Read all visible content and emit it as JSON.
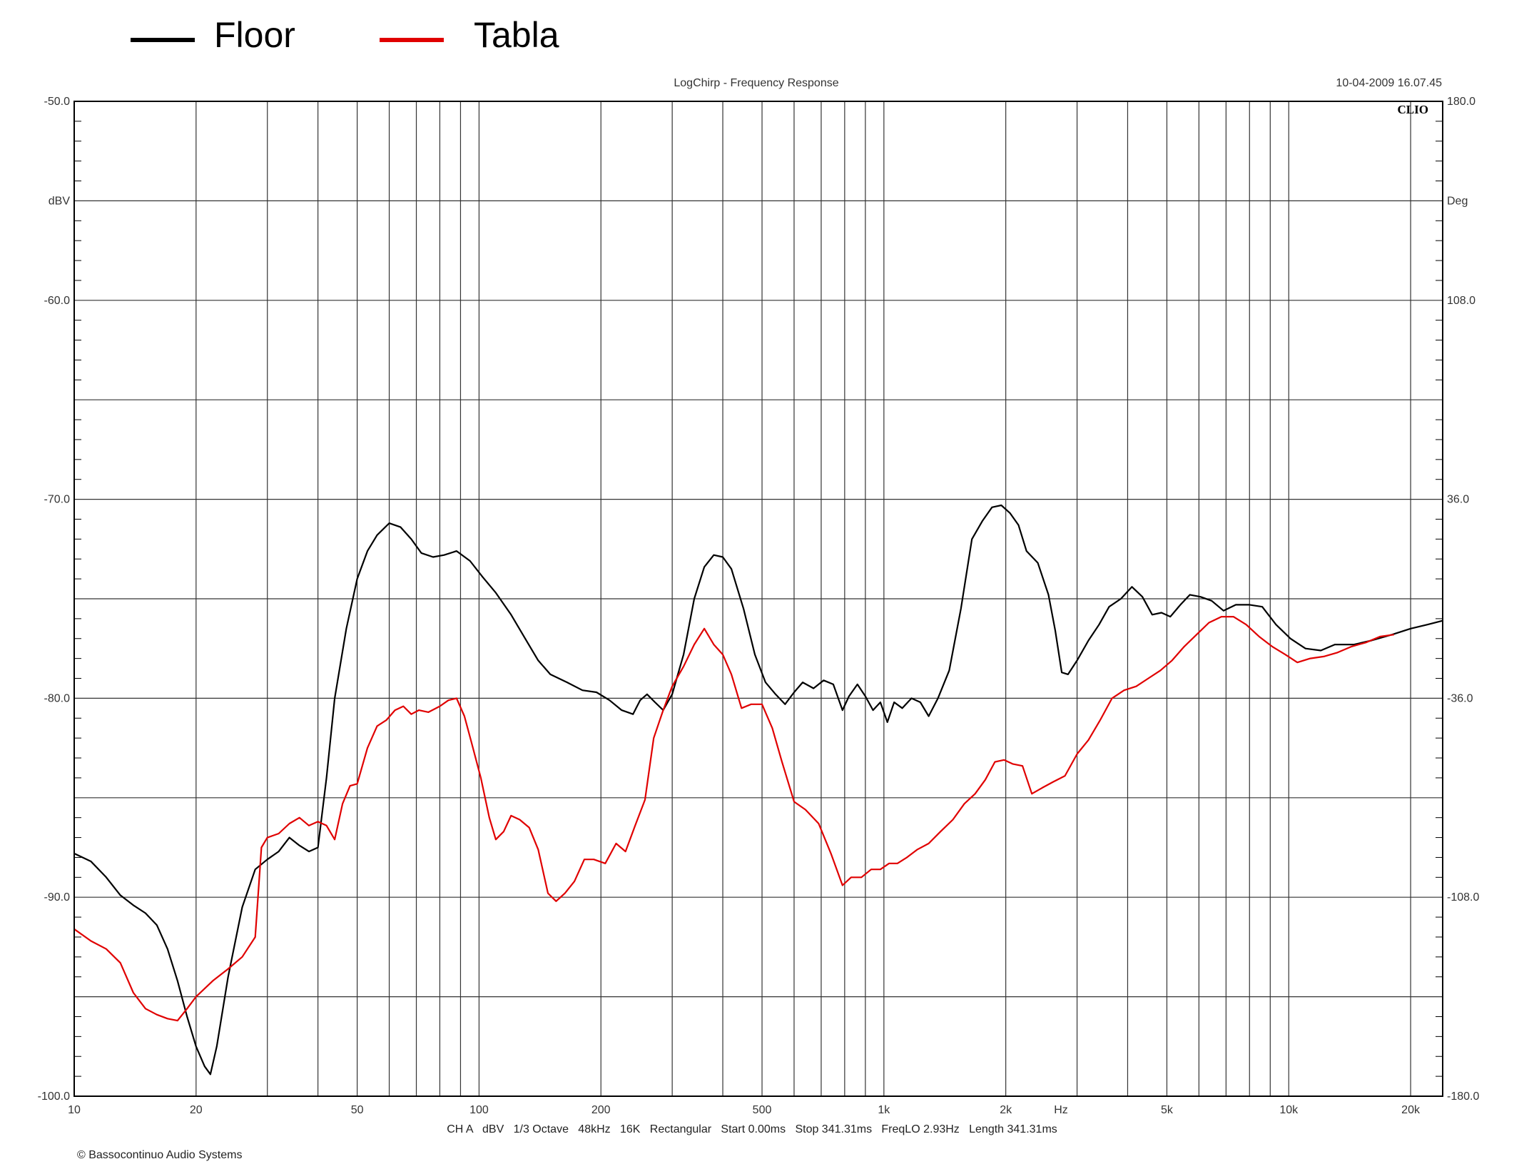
{
  "legend": [
    {
      "name": "Floor",
      "color": "#000000"
    },
    {
      "name": "Tabla",
      "color": "#e00000"
    }
  ],
  "header": {
    "title": "LogChirp - Frequency Response",
    "timestamp": "10-04-2009 16.07.45",
    "brand": "CLIO"
  },
  "footer": {
    "settings": "CH A   dBV   1/3 Octave   48kHz   16K   Rectangular   Start 0.00ms   Stop 341.31ms   FreqLO 2.93Hz   Length 341.31ms",
    "copyright": "© Bassocontinuo Audio Systems"
  },
  "chart_data": {
    "type": "line",
    "x_scale": "log",
    "xlim": [
      10,
      24000
    ],
    "ylim": [
      -100,
      -50
    ],
    "y2lim": [
      -180,
      180
    ],
    "xlabel": "Hz",
    "ylabel": "dBV",
    "y2label": "Deg",
    "grid": true,
    "x_ticks": [
      {
        "value": 10,
        "label": "10"
      },
      {
        "value": 20,
        "label": "20"
      },
      {
        "value": 50,
        "label": "50"
      },
      {
        "value": 100,
        "label": "100"
      },
      {
        "value": 200,
        "label": "200"
      },
      {
        "value": 500,
        "label": "500"
      },
      {
        "value": 1000,
        "label": "1k"
      },
      {
        "value": 2000,
        "label": "2k"
      },
      {
        "value": 5000,
        "label": "5k"
      },
      {
        "value": 10000,
        "label": "10k"
      },
      {
        "value": 20000,
        "label": "20k"
      }
    ],
    "y_ticks": [
      {
        "value": -50,
        "label": "-50.0"
      },
      {
        "value": -55,
        "label": "dBV"
      },
      {
        "value": -60,
        "label": "-60.0"
      },
      {
        "value": -70,
        "label": "-70.0"
      },
      {
        "value": -80,
        "label": "-80.0"
      },
      {
        "value": -90,
        "label": "-90.0"
      },
      {
        "value": -100,
        "label": "-100.0"
      }
    ],
    "y2_ticks": [
      {
        "value": 180,
        "label": "180.0"
      },
      {
        "value": 144,
        "label": "Deg"
      },
      {
        "value": 108,
        "label": "108.0"
      },
      {
        "value": 36,
        "label": "36.0"
      },
      {
        "value": -36,
        "label": "-36.0"
      },
      {
        "value": -108,
        "label": "-108.0"
      },
      {
        "value": -180,
        "label": "-180.0"
      }
    ],
    "series": [
      {
        "name": "Floor",
        "color": "#000000",
        "points": [
          [
            10,
            -87.8
          ],
          [
            11,
            -88.2
          ],
          [
            12,
            -89.0
          ],
          [
            13,
            -89.9
          ],
          [
            14,
            -90.4
          ],
          [
            15,
            -90.8
          ],
          [
            16,
            -91.4
          ],
          [
            17,
            -92.6
          ],
          [
            18,
            -94.2
          ],
          [
            19,
            -96.0
          ],
          [
            20,
            -97.5
          ],
          [
            21,
            -98.5
          ],
          [
            21.7,
            -98.9
          ],
          [
            22.5,
            -97.5
          ],
          [
            24,
            -94.0
          ],
          [
            26,
            -90.5
          ],
          [
            28,
            -88.6
          ],
          [
            30,
            -88.1
          ],
          [
            32,
            -87.7
          ],
          [
            34,
            -87.0
          ],
          [
            36,
            -87.4
          ],
          [
            38,
            -87.7
          ],
          [
            40,
            -87.5
          ],
          [
            42,
            -84.0
          ],
          [
            44,
            -80.0
          ],
          [
            47,
            -76.5
          ],
          [
            50,
            -74.0
          ],
          [
            53,
            -72.6
          ],
          [
            56,
            -71.8
          ],
          [
            60,
            -71.2
          ],
          [
            64,
            -71.4
          ],
          [
            68,
            -72.0
          ],
          [
            72,
            -72.7
          ],
          [
            77,
            -72.9
          ],
          [
            82,
            -72.8
          ],
          [
            88,
            -72.6
          ],
          [
            95,
            -73.1
          ],
          [
            102,
            -73.9
          ],
          [
            110,
            -74.7
          ],
          [
            120,
            -75.8
          ],
          [
            130,
            -77.0
          ],
          [
            140,
            -78.1
          ],
          [
            150,
            -78.8
          ],
          [
            165,
            -79.2
          ],
          [
            180,
            -79.6
          ],
          [
            195,
            -79.7
          ],
          [
            210,
            -80.1
          ],
          [
            225,
            -80.6
          ],
          [
            240,
            -80.8
          ],
          [
            250,
            -80.1
          ],
          [
            260,
            -79.8
          ],
          [
            272,
            -80.2
          ],
          [
            285,
            -80.6
          ],
          [
            300,
            -79.8
          ],
          [
            320,
            -77.8
          ],
          [
            340,
            -75.0
          ],
          [
            360,
            -73.4
          ],
          [
            380,
            -72.8
          ],
          [
            400,
            -72.9
          ],
          [
            420,
            -73.5
          ],
          [
            450,
            -75.5
          ],
          [
            480,
            -77.8
          ],
          [
            510,
            -79.2
          ],
          [
            540,
            -79.8
          ],
          [
            570,
            -80.3
          ],
          [
            600,
            -79.7
          ],
          [
            630,
            -79.2
          ],
          [
            670,
            -79.5
          ],
          [
            710,
            -79.1
          ],
          [
            750,
            -79.3
          ],
          [
            790,
            -80.6
          ],
          [
            820,
            -79.9
          ],
          [
            860,
            -79.3
          ],
          [
            900,
            -79.9
          ],
          [
            940,
            -80.6
          ],
          [
            980,
            -80.2
          ],
          [
            1020,
            -81.2
          ],
          [
            1060,
            -80.2
          ],
          [
            1110,
            -80.5
          ],
          [
            1170,
            -80.0
          ],
          [
            1230,
            -80.2
          ],
          [
            1290,
            -80.9
          ],
          [
            1360,
            -80.0
          ],
          [
            1450,
            -78.6
          ],
          [
            1550,
            -75.5
          ],
          [
            1650,
            -72.0
          ],
          [
            1750,
            -71.1
          ],
          [
            1850,
            -70.4
          ],
          [
            1950,
            -70.3
          ],
          [
            2050,
            -70.7
          ],
          [
            2150,
            -71.3
          ],
          [
            2250,
            -72.6
          ],
          [
            2400,
            -73.2
          ],
          [
            2550,
            -74.8
          ],
          [
            2650,
            -76.6
          ],
          [
            2750,
            -78.7
          ],
          [
            2850,
            -78.8
          ],
          [
            3000,
            -78.1
          ],
          [
            3200,
            -77.1
          ],
          [
            3400,
            -76.3
          ],
          [
            3600,
            -75.4
          ],
          [
            3850,
            -75.0
          ],
          [
            4100,
            -74.4
          ],
          [
            4350,
            -74.9
          ],
          [
            4600,
            -75.8
          ],
          [
            4850,
            -75.7
          ],
          [
            5100,
            -75.9
          ],
          [
            5400,
            -75.3
          ],
          [
            5700,
            -74.8
          ],
          [
            6050,
            -74.9
          ],
          [
            6450,
            -75.1
          ],
          [
            6900,
            -75.6
          ],
          [
            7400,
            -75.3
          ],
          [
            8000,
            -75.3
          ],
          [
            8600,
            -75.4
          ],
          [
            9300,
            -76.3
          ],
          [
            10100,
            -77.0
          ],
          [
            11000,
            -77.5
          ],
          [
            12000,
            -77.6
          ],
          [
            13000,
            -77.3
          ],
          [
            14500,
            -77.3
          ],
          [
            16000,
            -77.1
          ],
          [
            18000,
            -76.8
          ],
          [
            20000,
            -76.5
          ],
          [
            22000,
            -76.3
          ],
          [
            24000,
            -76.1
          ]
        ]
      },
      {
        "name": "Tabla",
        "color": "#e00000",
        "points": [
          [
            10,
            -91.6
          ],
          [
            11,
            -92.2
          ],
          [
            12,
            -92.6
          ],
          [
            13,
            -93.3
          ],
          [
            14,
            -94.8
          ],
          [
            15,
            -95.6
          ],
          [
            16,
            -95.9
          ],
          [
            17,
            -96.1
          ],
          [
            18,
            -96.2
          ],
          [
            19,
            -95.6
          ],
          [
            20,
            -95.0
          ],
          [
            22,
            -94.2
          ],
          [
            24,
            -93.6
          ],
          [
            26,
            -93.0
          ],
          [
            28,
            -92.0
          ],
          [
            29,
            -87.5
          ],
          [
            30,
            -87.0
          ],
          [
            32,
            -86.8
          ],
          [
            34,
            -86.3
          ],
          [
            36,
            -86.0
          ],
          [
            38,
            -86.4
          ],
          [
            40,
            -86.2
          ],
          [
            42,
            -86.4
          ],
          [
            44,
            -87.1
          ],
          [
            46,
            -85.3
          ],
          [
            48,
            -84.4
          ],
          [
            50,
            -84.3
          ],
          [
            53,
            -82.5
          ],
          [
            56,
            -81.4
          ],
          [
            59,
            -81.1
          ],
          [
            62,
            -80.6
          ],
          [
            65,
            -80.4
          ],
          [
            68,
            -80.8
          ],
          [
            71,
            -80.6
          ],
          [
            75,
            -80.7
          ],
          [
            80,
            -80.4
          ],
          [
            84,
            -80.1
          ],
          [
            88,
            -80.0
          ],
          [
            92,
            -80.9
          ],
          [
            96,
            -82.3
          ],
          [
            101,
            -84.0
          ],
          [
            106,
            -86.0
          ],
          [
            110,
            -87.1
          ],
          [
            115,
            -86.7
          ],
          [
            120,
            -85.9
          ],
          [
            126,
            -86.1
          ],
          [
            133,
            -86.5
          ],
          [
            140,
            -87.6
          ],
          [
            148,
            -89.8
          ],
          [
            155,
            -90.2
          ],
          [
            163,
            -89.8
          ],
          [
            172,
            -89.2
          ],
          [
            182,
            -88.1
          ],
          [
            192,
            -88.1
          ],
          [
            205,
            -88.3
          ],
          [
            218,
            -87.3
          ],
          [
            230,
            -87.7
          ],
          [
            243,
            -86.4
          ],
          [
            257,
            -85.1
          ],
          [
            270,
            -82.0
          ],
          [
            285,
            -80.6
          ],
          [
            300,
            -79.4
          ],
          [
            320,
            -78.4
          ],
          [
            340,
            -77.3
          ],
          [
            360,
            -76.5
          ],
          [
            380,
            -77.3
          ],
          [
            400,
            -77.8
          ],
          [
            420,
            -78.8
          ],
          [
            445,
            -80.5
          ],
          [
            470,
            -80.3
          ],
          [
            500,
            -80.3
          ],
          [
            530,
            -81.5
          ],
          [
            560,
            -83.2
          ],
          [
            600,
            -85.2
          ],
          [
            640,
            -85.6
          ],
          [
            690,
            -86.3
          ],
          [
            740,
            -87.8
          ],
          [
            790,
            -89.4
          ],
          [
            830,
            -89.0
          ],
          [
            880,
            -89.0
          ],
          [
            930,
            -88.6
          ],
          [
            980,
            -88.6
          ],
          [
            1030,
            -88.3
          ],
          [
            1080,
            -88.3
          ],
          [
            1140,
            -88.0
          ],
          [
            1210,
            -87.6
          ],
          [
            1290,
            -87.3
          ],
          [
            1380,
            -86.7
          ],
          [
            1480,
            -86.1
          ],
          [
            1580,
            -85.3
          ],
          [
            1680,
            -84.8
          ],
          [
            1780,
            -84.1
          ],
          [
            1880,
            -83.2
          ],
          [
            1980,
            -83.1
          ],
          [
            2080,
            -83.3
          ],
          [
            2200,
            -83.4
          ],
          [
            2320,
            -84.8
          ],
          [
            2460,
            -84.5
          ],
          [
            2620,
            -84.2
          ],
          [
            2800,
            -83.9
          ],
          [
            3000,
            -82.8
          ],
          [
            3200,
            -82.1
          ],
          [
            3420,
            -81.1
          ],
          [
            3660,
            -80.0
          ],
          [
            3920,
            -79.6
          ],
          [
            4200,
            -79.4
          ],
          [
            4500,
            -79.0
          ],
          [
            4820,
            -78.6
          ],
          [
            5150,
            -78.1
          ],
          [
            5520,
            -77.4
          ],
          [
            5920,
            -76.8
          ],
          [
            6350,
            -76.2
          ],
          [
            6820,
            -75.9
          ],
          [
            7300,
            -75.9
          ],
          [
            7850,
            -76.3
          ],
          [
            8450,
            -76.9
          ],
          [
            9100,
            -77.4
          ],
          [
            9800,
            -77.8
          ],
          [
            10500,
            -78.2
          ],
          [
            11300,
            -78.0
          ],
          [
            12200,
            -77.9
          ],
          [
            13200,
            -77.7
          ],
          [
            14300,
            -77.4
          ],
          [
            15500,
            -77.2
          ],
          [
            16800,
            -76.9
          ],
          [
            18200,
            -76.8
          ]
        ]
      }
    ]
  }
}
